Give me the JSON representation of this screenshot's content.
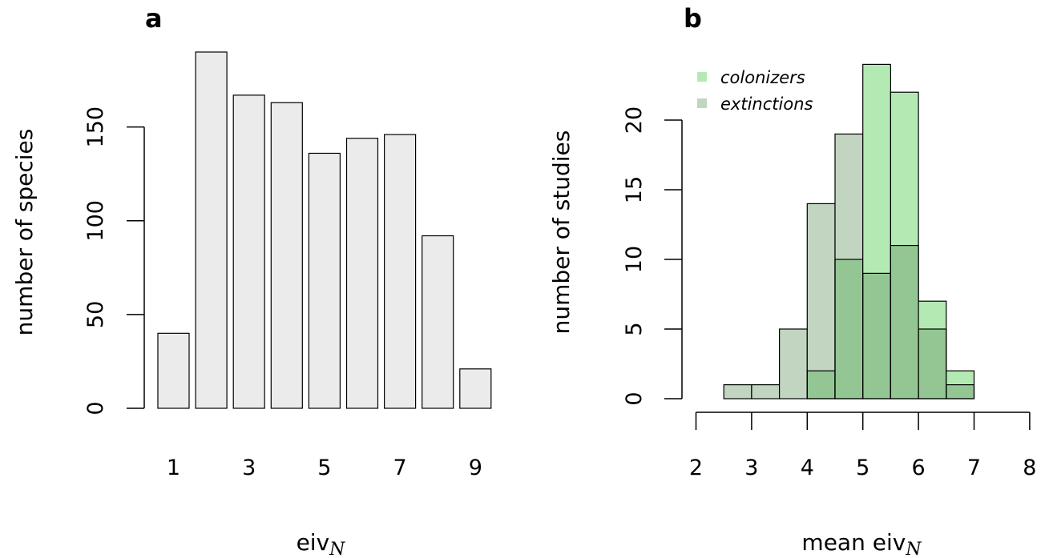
{
  "chart_data": [
    {
      "panel": "a",
      "type": "bar",
      "xlabel": "eiv",
      "xlabel_sub": "N",
      "ylabel": "number of species",
      "categories": [
        "1",
        "2",
        "3",
        "4",
        "5",
        "6",
        "7",
        "8",
        "9"
      ],
      "x_tick_labels": [
        "1",
        "3",
        "5",
        "7",
        "9"
      ],
      "values": [
        40,
        190,
        167,
        163,
        136,
        144,
        146,
        92,
        21
      ],
      "ylim": [
        0,
        190
      ],
      "y_ticks": [
        0,
        50,
        100,
        150
      ],
      "bar_color": "#ebebeb",
      "grid": false
    },
    {
      "panel": "b",
      "type": "bar",
      "histogram": true,
      "xlabel": "mean eiv",
      "xlabel_sub": "N",
      "ylabel": "number of studies",
      "bin_edges": [
        2.5,
        3,
        3.5,
        4,
        4.5,
        5,
        5.5,
        6,
        6.5,
        7
      ],
      "xlim": [
        2,
        8
      ],
      "x_ticks": [
        2,
        3,
        4,
        5,
        6,
        7,
        8
      ],
      "ylim": [
        0,
        24
      ],
      "y_ticks": [
        0,
        5,
        10,
        15,
        20
      ],
      "series": [
        {
          "name": "colonizers",
          "color": "#b3eab3",
          "values": [
            0,
            0,
            0,
            2,
            10,
            24,
            22,
            7,
            2
          ]
        },
        {
          "name": "extinctions",
          "color": "#c1d5c1",
          "values": [
            1,
            1,
            5,
            14,
            19,
            9,
            11,
            5,
            1
          ]
        }
      ],
      "overlap_color": "#93c693",
      "legend_position": "top-left",
      "grid": false
    }
  ]
}
